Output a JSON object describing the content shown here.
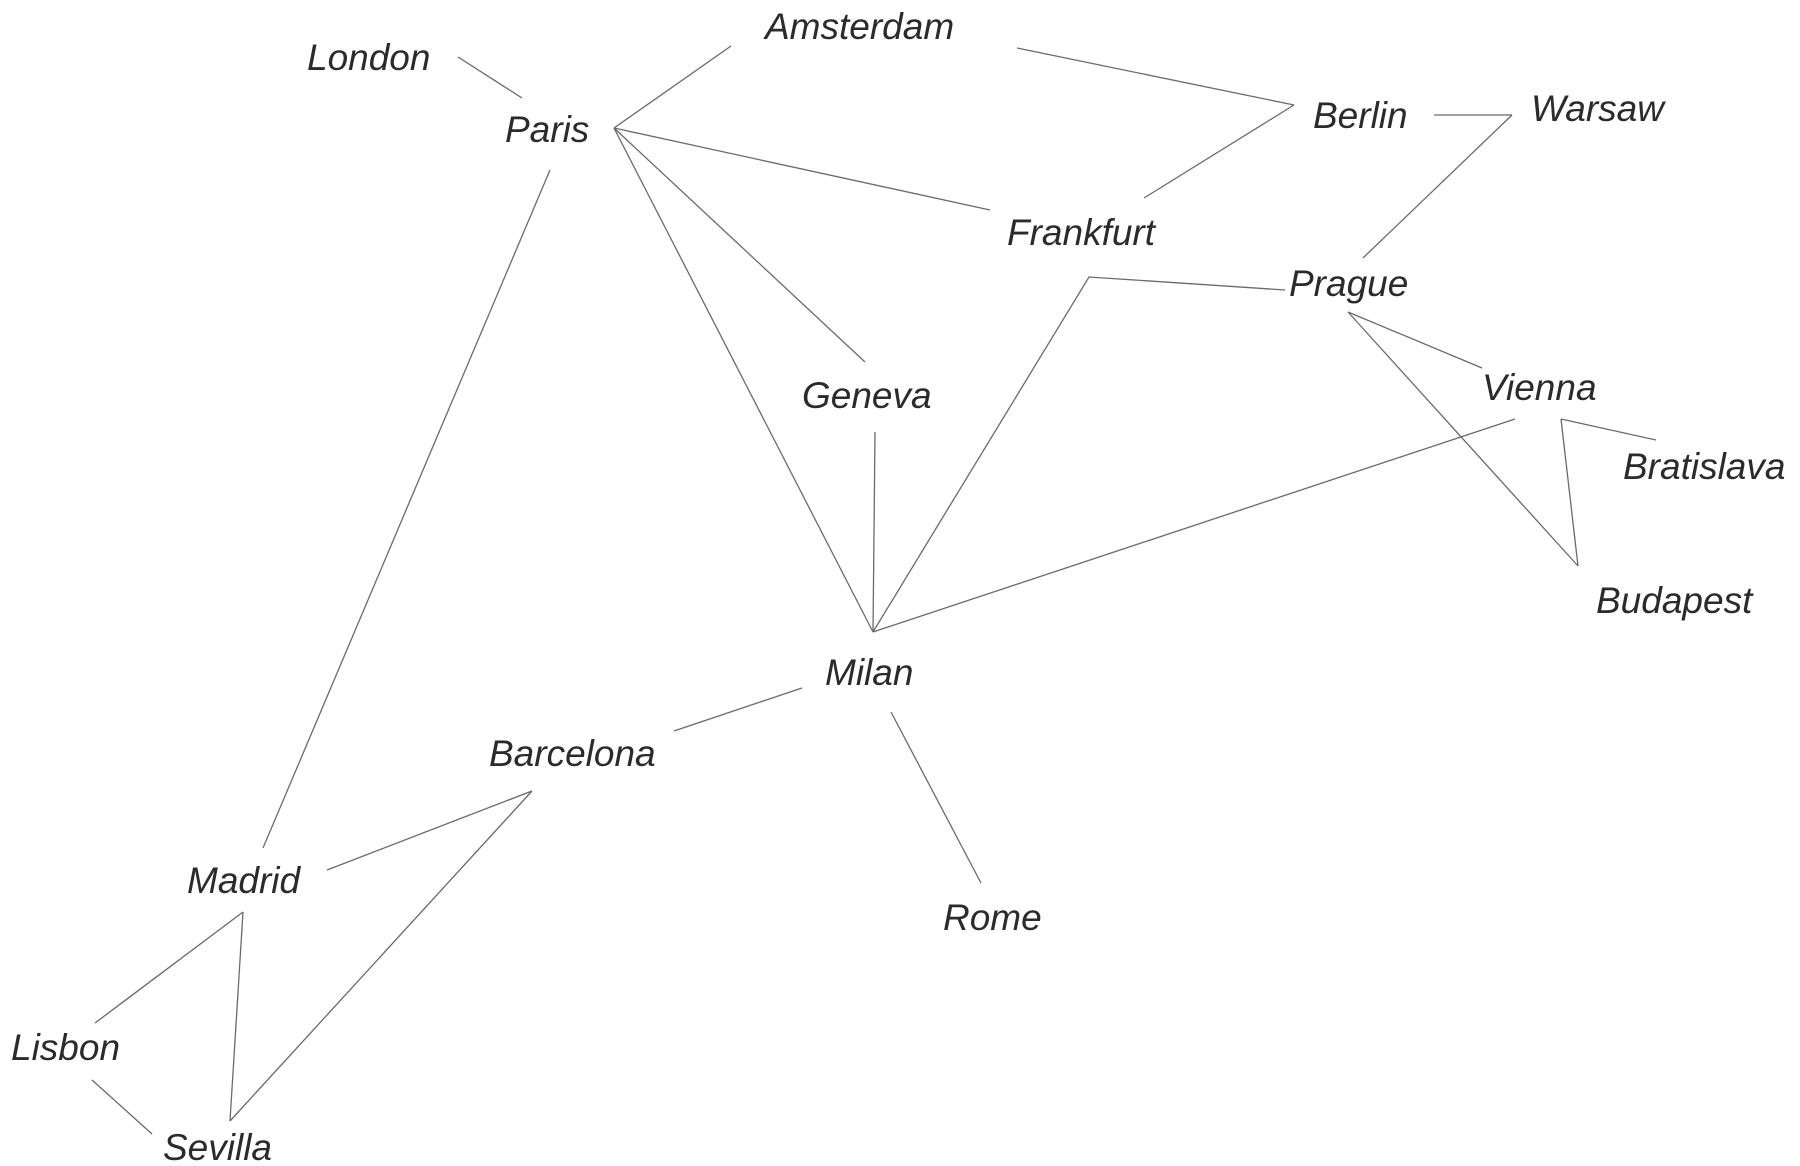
{
  "nodes": [
    {
      "id": "london",
      "label": "London"
    },
    {
      "id": "paris",
      "label": "Paris"
    },
    {
      "id": "amsterdam",
      "label": "Amsterdam"
    },
    {
      "id": "berlin",
      "label": "Berlin"
    },
    {
      "id": "warsaw",
      "label": "Warsaw"
    },
    {
      "id": "frankfurt",
      "label": "Frankfurt"
    },
    {
      "id": "prague",
      "label": "Prague"
    },
    {
      "id": "geneva",
      "label": "Geneva"
    },
    {
      "id": "vienna",
      "label": "Vienna"
    },
    {
      "id": "bratislava",
      "label": "Bratislava"
    },
    {
      "id": "budapest",
      "label": "Budapest"
    },
    {
      "id": "milan",
      "label": "Milan"
    },
    {
      "id": "barcelona",
      "label": "Barcelona"
    },
    {
      "id": "madrid",
      "label": "Madrid"
    },
    {
      "id": "rome",
      "label": "Rome"
    },
    {
      "id": "lisbon",
      "label": "Lisbon"
    },
    {
      "id": "sevilla",
      "label": "Sevilla"
    }
  ],
  "edges": [
    {
      "from": "london",
      "to": "paris"
    },
    {
      "from": "paris",
      "to": "amsterdam"
    },
    {
      "from": "paris",
      "to": "frankfurt"
    },
    {
      "from": "paris",
      "to": "geneva"
    },
    {
      "from": "paris",
      "to": "milan"
    },
    {
      "from": "paris",
      "to": "madrid"
    },
    {
      "from": "amsterdam",
      "to": "berlin"
    },
    {
      "from": "berlin",
      "to": "frankfurt"
    },
    {
      "from": "berlin",
      "to": "warsaw"
    },
    {
      "from": "warsaw",
      "to": "prague"
    },
    {
      "from": "prague",
      "to": "milan"
    },
    {
      "from": "prague",
      "to": "vienna"
    },
    {
      "from": "prague",
      "to": "budapest"
    },
    {
      "from": "vienna",
      "to": "milan"
    },
    {
      "from": "vienna",
      "to": "bratislava"
    },
    {
      "from": "vienna",
      "to": "budapest"
    },
    {
      "from": "geneva",
      "to": "milan"
    },
    {
      "from": "milan",
      "to": "barcelona"
    },
    {
      "from": "milan",
      "to": "rome"
    },
    {
      "from": "barcelona",
      "to": "madrid"
    },
    {
      "from": "barcelona",
      "to": "sevilla"
    },
    {
      "from": "madrid",
      "to": "lisbon"
    },
    {
      "from": "madrid",
      "to": "sevilla"
    },
    {
      "from": "lisbon",
      "to": "sevilla"
    }
  ]
}
